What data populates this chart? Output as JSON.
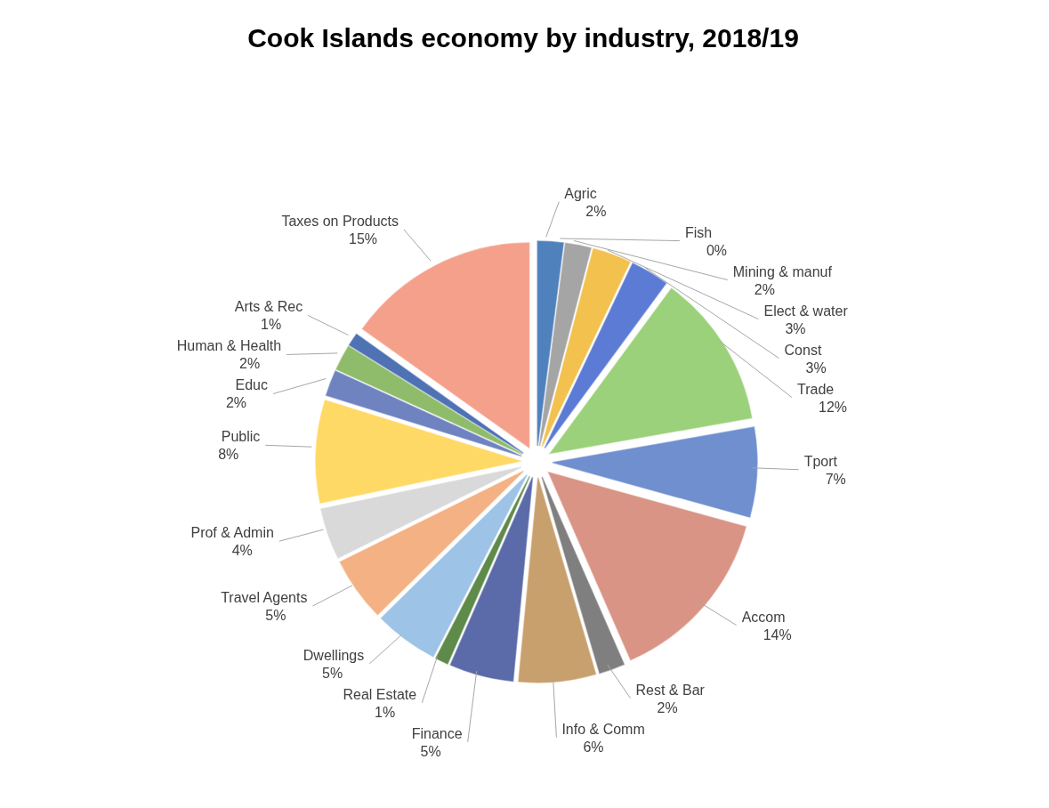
{
  "chart_data": {
    "type": "pie",
    "title": "Cook Islands economy by industry, 2018/19",
    "categories": [
      "Agric",
      "Fish",
      "Mining & manuf",
      "Elect & water",
      "Const",
      "Trade",
      "Tport",
      "Accom",
      "Rest & Bar",
      "Info & Comm",
      "Finance",
      "Real Estate",
      "Dwellings",
      "Travel Agents",
      "Prof & Admin",
      "Public",
      "Educ",
      "Human & Health",
      "Arts & Rec",
      "Taxes on Products"
    ],
    "values": [
      2,
      0,
      2,
      3,
      3,
      12,
      7,
      14,
      2,
      6,
      5,
      1,
      5,
      5,
      4,
      8,
      2,
      2,
      1,
      15
    ],
    "value_labels": [
      "2%",
      "0%",
      "2%",
      "3%",
      "3%",
      "12%",
      "7%",
      "14%",
      "2%",
      "6%",
      "5%",
      "1%",
      "5%",
      "5%",
      "4%",
      "8%",
      "2%",
      "2%",
      "1%",
      "15%"
    ],
    "colors": [
      "#4f81bd",
      "#c0603a",
      "#a5a5a5",
      "#f2c14e",
      "#5b7bd5",
      "#9bd17a",
      "#6f8fcf",
      "#d99485",
      "#7f7f7f",
      "#c8a06e",
      "#5b6aa8",
      "#5e8a4a",
      "#9dc3e6",
      "#f4b183",
      "#d9d9d9",
      "#ffd966",
      "#6f83c0",
      "#8fbc6a",
      "#4f72b5",
      "#f4a08b"
    ]
  }
}
